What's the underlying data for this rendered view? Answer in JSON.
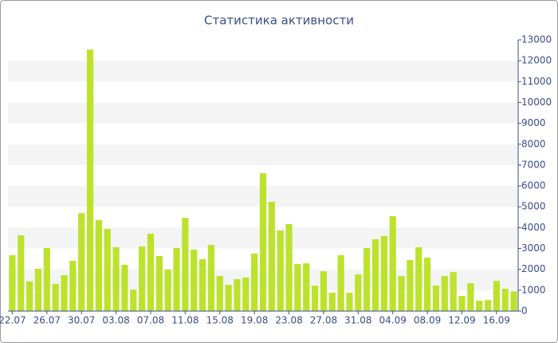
{
  "chart_data": {
    "type": "bar",
    "title": "Статистика активности",
    "categories": [
      "22.07",
      null,
      null,
      null,
      "26.07",
      null,
      null,
      null,
      "30.07",
      null,
      null,
      null,
      "03.08",
      null,
      null,
      null,
      "07.08",
      null,
      null,
      null,
      "11.08",
      null,
      null,
      null,
      "15.08",
      null,
      null,
      null,
      "19.08",
      null,
      null,
      null,
      "23.08",
      null,
      null,
      null,
      "27.08",
      null,
      null,
      null,
      "31.08",
      null,
      null,
      null,
      "04.09",
      null,
      null,
      null,
      "08.09",
      null,
      null,
      null,
      "12.09",
      null,
      null,
      null,
      "16.09",
      null,
      null
    ],
    "values": [
      2680,
      3630,
      1420,
      2030,
      3020,
      1300,
      1720,
      2410,
      4700,
      12540,
      4360,
      3940,
      3060,
      2220,
      1030,
      3100,
      3710,
      2640,
      1990,
      3020,
      4470,
      2950,
      2490,
      3170,
      1680,
      1260,
      1530,
      1610,
      2760,
      6610,
      5240,
      3860,
      4170,
      2260,
      2290,
      1220,
      1910,
      880,
      2680,
      880,
      1760,
      3020,
      3440,
      3600,
      4550,
      1680,
      2450,
      3060,
      2560,
      1220,
      1680,
      1870,
      730,
      1340,
      500,
      530,
      1450,
      1070,
      950
    ],
    "color": "#bde22d",
    "ylim": [
      0,
      13000
    ],
    "yticks": [
      0,
      1000,
      2000,
      3000,
      4000,
      5000,
      6000,
      7000,
      8000,
      9000,
      10000,
      11000,
      12000,
      13000
    ],
    "grid": true
  }
}
